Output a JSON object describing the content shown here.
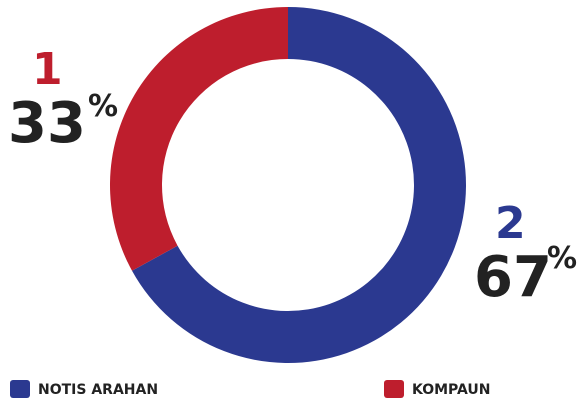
{
  "chart_data": {
    "type": "donut",
    "categories": [
      "NOTIS ARAHAN",
      "KOMPAUN"
    ],
    "values": [
      67,
      33
    ],
    "counts": [
      2,
      1
    ],
    "value_suffix": "%",
    "colors": [
      "#2b3990",
      "#be1e2d"
    ]
  }
}
